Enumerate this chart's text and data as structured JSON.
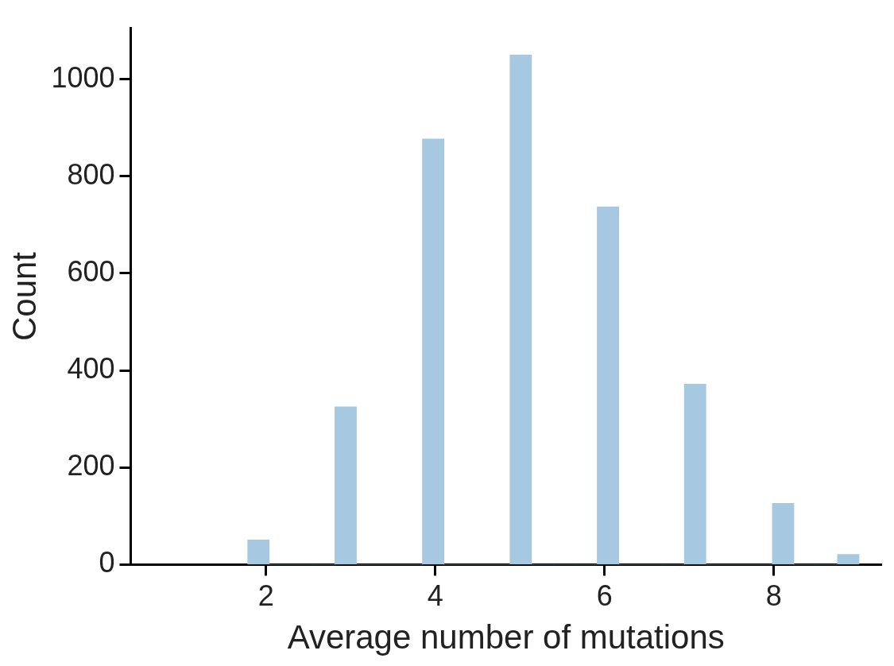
{
  "chart_data": {
    "type": "histogram",
    "xlabel": "Average number of mutations",
    "ylabel": "Count",
    "bins": [
      1.78,
      2.04,
      2.3,
      2.56,
      2.81,
      3.07,
      3.33,
      3.59,
      3.85,
      4.1,
      4.36,
      4.62,
      4.88,
      5.14,
      5.4,
      5.65,
      5.91,
      6.17,
      6.43,
      6.69,
      6.94,
      7.2,
      7.46,
      7.72,
      7.98,
      8.24,
      8.49,
      8.75,
      9.01
    ],
    "values": [
      51,
      0,
      0,
      0,
      325,
      0,
      0,
      0,
      877,
      0,
      0,
      0,
      1050,
      0,
      0,
      0,
      737,
      0,
      0,
      0,
      372,
      0,
      0,
      0,
      126,
      0,
      0,
      21
    ],
    "color": "#a6c9e1",
    "xlim": [
      0.4,
      9.27
    ],
    "ylim": [
      0,
      1105
    ],
    "xticks": [
      2,
      4,
      6,
      8
    ],
    "yticks": [
      0,
      200,
      400,
      600,
      800,
      1000
    ],
    "grid": false,
    "legend": false
  }
}
